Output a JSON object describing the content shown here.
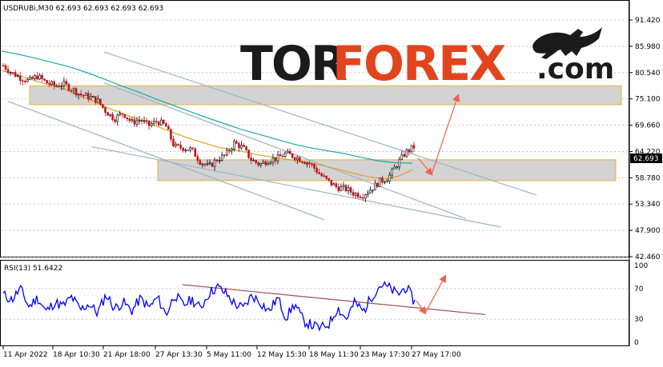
{
  "colors": {
    "rsi": "#0000ff",
    "ma_fast": "#e0a020",
    "ma_slow": "#20a8a8",
    "candle_up": "#000000",
    "candle_down": "#c0151a",
    "zone_fill": "#d3d3d3",
    "zone_border": "#e6b040",
    "arrow": "#f06050",
    "channel": "#9fb4c4",
    "rsi_trend": "#a05050",
    "price_label_bg": "#000000"
  },
  "header": {
    "symbol_line": "USDRUBi,M30  62.693 62.693 62.693 62.693",
    "rsi_label": "RSI(13) 51.6422"
  },
  "logo": {
    "part1": "TOR",
    "part2": "FOREX",
    "part3": ".com",
    "bull_icon": "bull-icon"
  },
  "current_price_label": "62.693",
  "chart_data": [
    {
      "type": "candlestick",
      "title": "USDRUBi,M30",
      "ylim": [
        42.46,
        91.42
      ],
      "y_ticks": [
        "91.420",
        "85.980",
        "80.540",
        "75.100",
        "69.660",
        "64.220",
        "58.780",
        "53.340",
        "47.900",
        "42.460"
      ],
      "x_ticks": [
        "11 Apr 2022",
        "18 Apr 10:30",
        "21 Apr 18:00",
        "27 Apr 13:30",
        "5 May 11:00",
        "12 May 15:30",
        "18 May 11:30",
        "23 May 17:30",
        "27 May 17:00"
      ],
      "last_price": 62.693,
      "price_path": [
        82,
        80.5,
        79.5,
        78.8,
        79.8,
        78.5,
        77.8,
        78.2,
        77.2,
        76.0,
        75.5,
        74.8,
        72.5,
        71.0,
        72.2,
        70.2,
        70.8,
        69.6,
        70.5,
        69.5,
        65.2,
        65.0,
        64.6,
        62.2,
        61.0,
        62.6,
        63.5,
        66.0,
        65.0,
        62.5,
        61.5,
        62.5,
        62.8,
        63.8,
        63.2,
        62.4,
        61.5,
        59.5,
        58.0,
        56.8,
        56.5,
        55.5,
        55.2,
        56.5,
        58.0,
        58.8,
        61.5,
        64.0,
        65.2
      ],
      "ma_fast": [
        81.0,
        80.2,
        79.4,
        78.5,
        77.8,
        77.0,
        76.0,
        74.8,
        73.5,
        72.5,
        71.5,
        70.5,
        69.5,
        68.5,
        67.5,
        66.6,
        65.8,
        65.0,
        64.6,
        64.1,
        63.5,
        63.1,
        62.7,
        62.3,
        61.9,
        61.3,
        60.7,
        60.0,
        59.3,
        58.8,
        58.6,
        59.2,
        60.4
      ],
      "ma_slow": [
        85.0,
        84.3,
        83.5,
        82.6,
        81.7,
        80.5,
        79.2,
        77.8,
        76.5,
        75.1,
        73.8,
        72.5,
        71.2,
        70.0,
        68.8,
        67.8,
        66.8,
        65.8,
        65.0,
        64.4,
        63.8,
        63.0,
        62.3,
        61.9,
        61.8
      ],
      "support_zone": [
        58.2,
        62.5
      ],
      "resistance_zone": [
        73.9,
        77.8
      ],
      "projection": {
        "from": 62.9,
        "dip": 59.5,
        "target": 75.8
      }
    },
    {
      "type": "line",
      "title": "RSI(13)",
      "current_value": 51.6422,
      "ylim": [
        0,
        100
      ],
      "y_ticks": [
        "100",
        "70",
        "30",
        "0"
      ],
      "levels": [
        30,
        70
      ],
      "series": [
        {
          "name": "RSI(13)",
          "values": [
            62,
            55,
            70,
            46,
            58,
            40,
            52,
            47,
            59,
            42,
            50,
            38,
            62,
            44,
            52,
            41,
            57,
            45,
            58,
            36,
            62,
            48,
            56,
            44,
            64,
            72,
            63,
            50,
            44,
            61,
            52,
            40,
            58,
            32,
            50,
            28,
            22,
            18,
            24,
            45,
            30,
            52,
            40,
            60,
            75,
            71,
            62,
            72,
            52
          ]
        }
      ],
      "trendline": [
        75,
        36
      ]
    }
  ]
}
